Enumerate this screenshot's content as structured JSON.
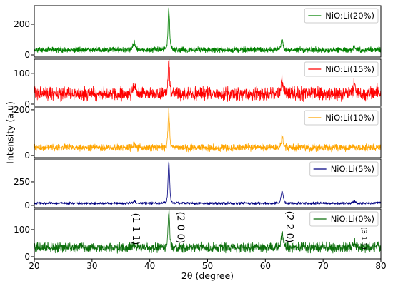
{
  "chart_data": {
    "type": "line",
    "stacked": true,
    "xlabel": "2θ (degree)",
    "ylabel": "Intensity (a.u)",
    "xlim": [
      20,
      80
    ],
    "xticks": [
      20,
      30,
      40,
      50,
      60,
      70,
      80
    ],
    "grid": false,
    "legend_placement": "top-right",
    "series": [
      {
        "name": "NiO:Li(20%)",
        "color": "#008000",
        "ylim": [
          -14,
          321
        ],
        "yticks": [
          0,
          200
        ],
        "baseline": 33,
        "noise_amplitude": 20,
        "peaks": [
          {
            "x": 37.3,
            "y": 82
          },
          {
            "x": 43.3,
            "y": 300
          },
          {
            "x": 62.9,
            "y": 98
          },
          {
            "x": 75.4,
            "y": 52
          },
          {
            "x": 79.4,
            "y": 40
          }
        ]
      },
      {
        "name": "NiO:Li(15%)",
        "color": "#ff0000",
        "ylim": [
          -7,
          146
        ],
        "yticks": [
          0,
          100
        ],
        "baseline": 33,
        "noise_amplitude": 24,
        "peaks": [
          {
            "x": 37.3,
            "y": 58
          },
          {
            "x": 43.3,
            "y": 143
          },
          {
            "x": 62.9,
            "y": 80
          },
          {
            "x": 75.4,
            "y": 64
          },
          {
            "x": 79.4,
            "y": 48
          }
        ]
      },
      {
        "name": "NiO:Li(10%)",
        "color": "#ffa500",
        "ylim": [
          -9,
          209
        ],
        "yticks": [
          0,
          200
        ],
        "baseline": 34,
        "noise_amplitude": 17,
        "peaks": [
          {
            "x": 37.3,
            "y": 50
          },
          {
            "x": 43.3,
            "y": 192
          },
          {
            "x": 62.9,
            "y": 80
          },
          {
            "x": 75.4,
            "y": 40
          },
          {
            "x": 79.4,
            "y": 36
          }
        ]
      },
      {
        "name": "NiO:Li(5%)",
        "color": "#000080",
        "ylim": [
          -23,
          492
        ],
        "yticks": [
          0,
          250
        ],
        "baseline": 23,
        "noise_amplitude": 15,
        "peaks": [
          {
            "x": 37.3,
            "y": 42
          },
          {
            "x": 43.3,
            "y": 470
          },
          {
            "x": 62.9,
            "y": 148
          },
          {
            "x": 75.4,
            "y": 45
          },
          {
            "x": 79.4,
            "y": 32
          }
        ]
      },
      {
        "name": "NiO:Li(0%)",
        "color": "#0b6e0b",
        "ylim": [
          -8,
          176
        ],
        "yticks": [
          0,
          100
        ],
        "baseline": 34,
        "noise_amplitude": 20,
        "peaks": [
          {
            "x": 37.3,
            "y": 52
          },
          {
            "x": 43.3,
            "y": 170
          },
          {
            "x": 62.9,
            "y": 92
          },
          {
            "x": 75.4,
            "y": 50
          },
          {
            "x": 79.4,
            "y": 42
          }
        ]
      }
    ],
    "annotations": [
      {
        "text": "(1 1 1)",
        "peak_x": 37.3
      },
      {
        "text": "(2 0 0)",
        "peak_x": 43.3
      },
      {
        "text": "(2 2 0)",
        "peak_x": 62.9
      },
      {
        "text": "(3 1 1)",
        "peak_x": 75.4
      }
    ]
  }
}
